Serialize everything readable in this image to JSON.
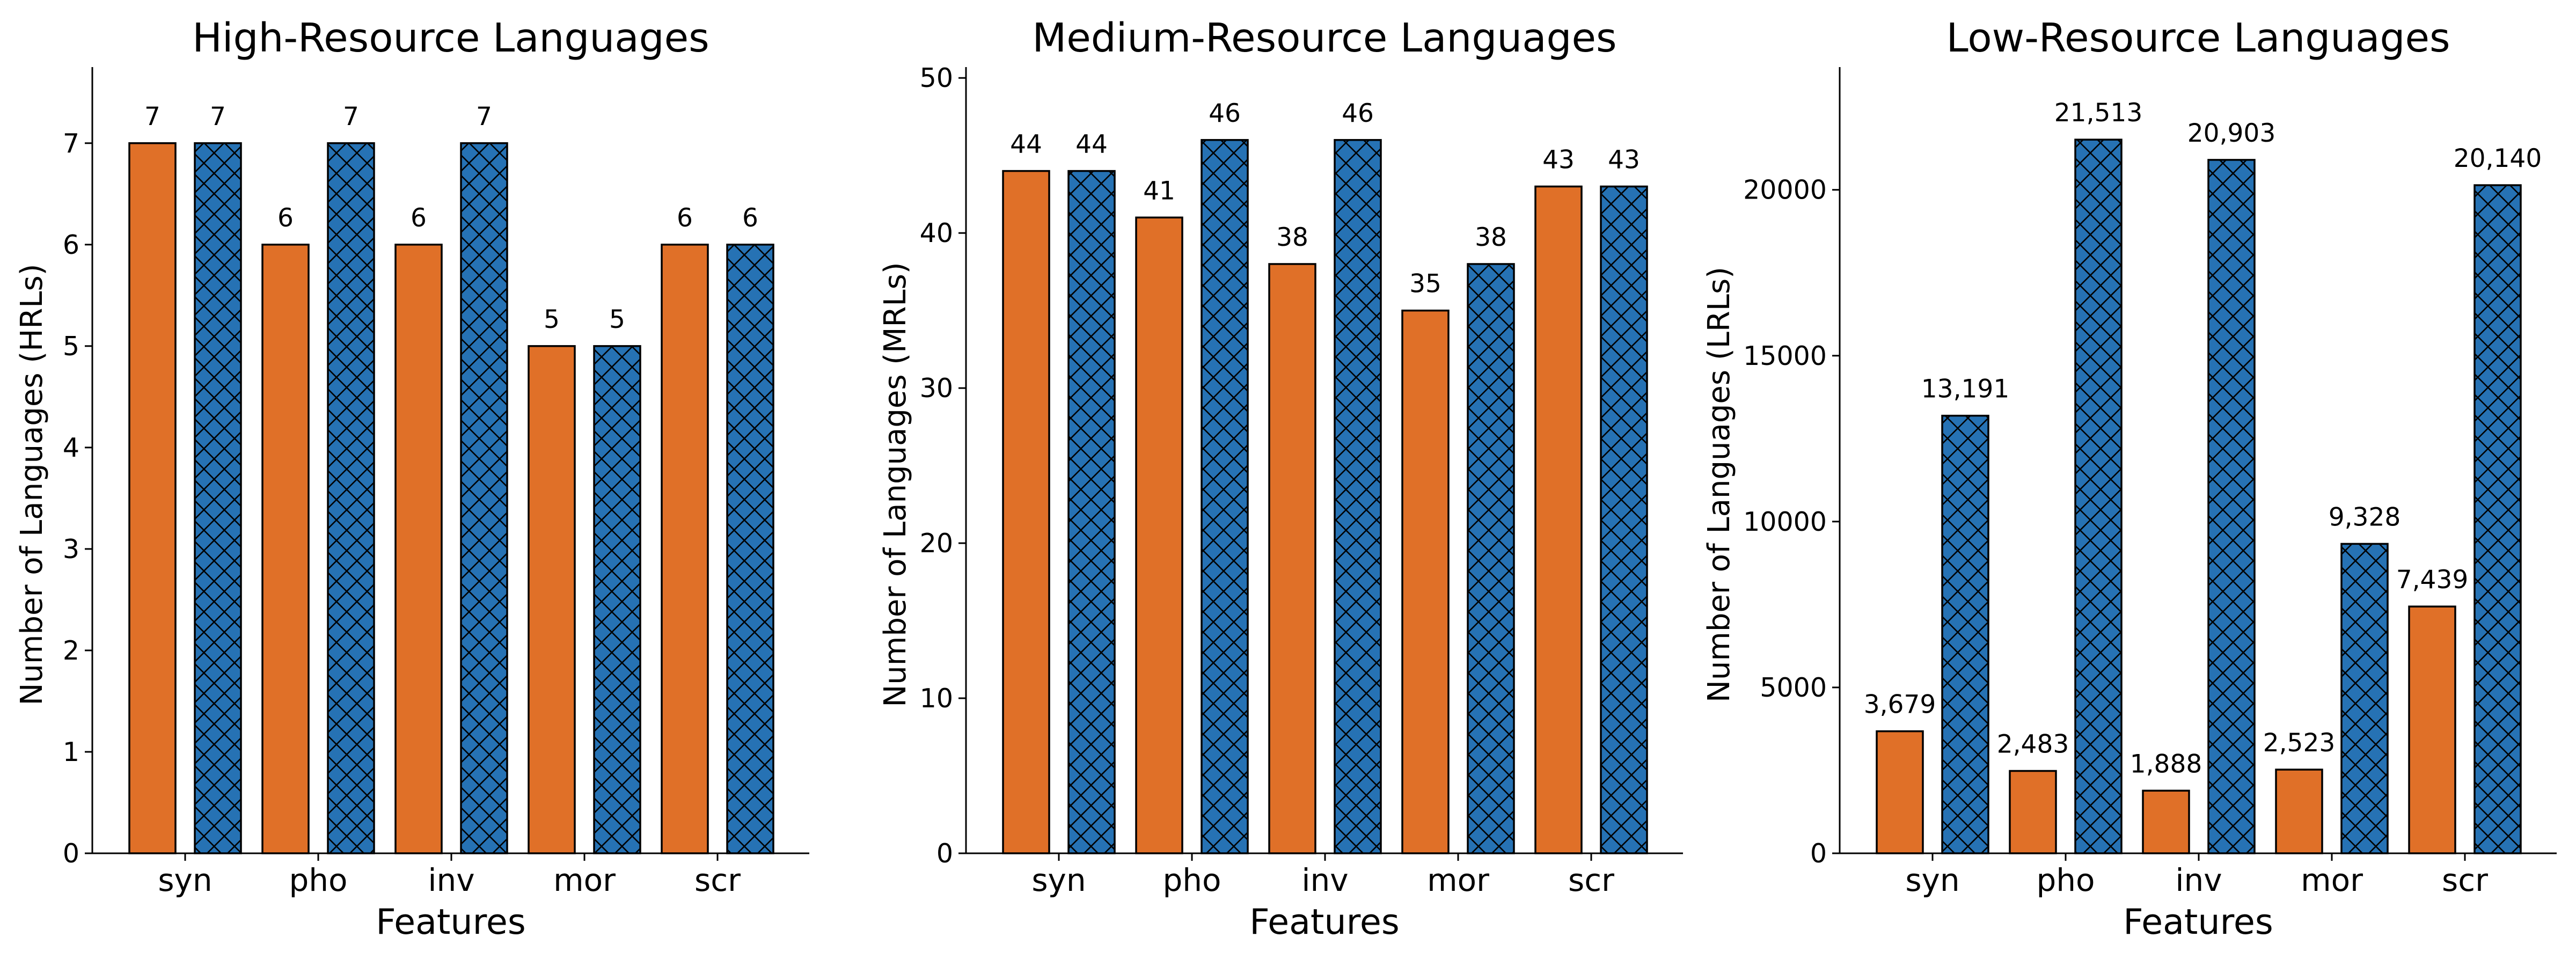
{
  "colors": {
    "orange": "#E07028",
    "blue": "#2672B4",
    "hatch_line": "#000000"
  },
  "bar_styles": [
    "solid-orange",
    "crosshatch-blue"
  ],
  "chart_data": [
    {
      "type": "bar",
      "title": "High-Resource Languages",
      "xlabel": "Features",
      "ylabel": "Number of Languages (HRLs)",
      "categories": [
        "syn",
        "pho",
        "inv",
        "mor",
        "scr"
      ],
      "series": [
        {
          "values": [
            7,
            6,
            6,
            5,
            6
          ],
          "labels": [
            "7",
            "6",
            "6",
            "5",
            "6"
          ]
        },
        {
          "values": [
            7,
            7,
            7,
            5,
            6
          ],
          "labels": [
            "7",
            "7",
            "7",
            "5",
            "6"
          ]
        }
      ],
      "ylim": [
        0,
        7.75
      ],
      "yticks": [
        0,
        1,
        2,
        3,
        4,
        5,
        6,
        7
      ],
      "ytick_labels": [
        "0",
        "1",
        "2",
        "3",
        "4",
        "5",
        "6",
        "7"
      ]
    },
    {
      "type": "bar",
      "title": "Medium-Resource Languages",
      "xlabel": "Features",
      "ylabel": "Number of Languages (MRLs)",
      "categories": [
        "syn",
        "pho",
        "inv",
        "mor",
        "scr"
      ],
      "series": [
        {
          "values": [
            44,
            41,
            38,
            35,
            43
          ],
          "labels": [
            "44",
            "41",
            "38",
            "35",
            "43"
          ]
        },
        {
          "values": [
            44,
            46,
            46,
            38,
            43
          ],
          "labels": [
            "44",
            "46",
            "46",
            "38",
            "43"
          ]
        }
      ],
      "ylim": [
        0,
        50.7
      ],
      "yticks": [
        0,
        10,
        20,
        30,
        40,
        50
      ],
      "ytick_labels": [
        "0",
        "10",
        "20",
        "30",
        "40",
        "50"
      ]
    },
    {
      "type": "bar",
      "title": "Low-Resource Languages",
      "xlabel": "Features",
      "ylabel": "Number of Languages (LRLs)",
      "categories": [
        "syn",
        "pho",
        "inv",
        "mor",
        "scr"
      ],
      "series": [
        {
          "values": [
            3679,
            2483,
            1888,
            2523,
            7439
          ],
          "labels": [
            "3,679",
            "2,483",
            "1,888",
            "2,523",
            "7,439"
          ]
        },
        {
          "values": [
            13191,
            21513,
            20903,
            9328,
            20140
          ],
          "labels": [
            "13,191",
            "21,513",
            "20,903",
            "9,328",
            "20,140"
          ]
        }
      ],
      "ylim": [
        0,
        23700
      ],
      "yticks": [
        0,
        5000,
        10000,
        15000,
        20000
      ],
      "ytick_labels": [
        "0",
        "5000",
        "10000",
        "15000",
        "20000"
      ]
    }
  ]
}
